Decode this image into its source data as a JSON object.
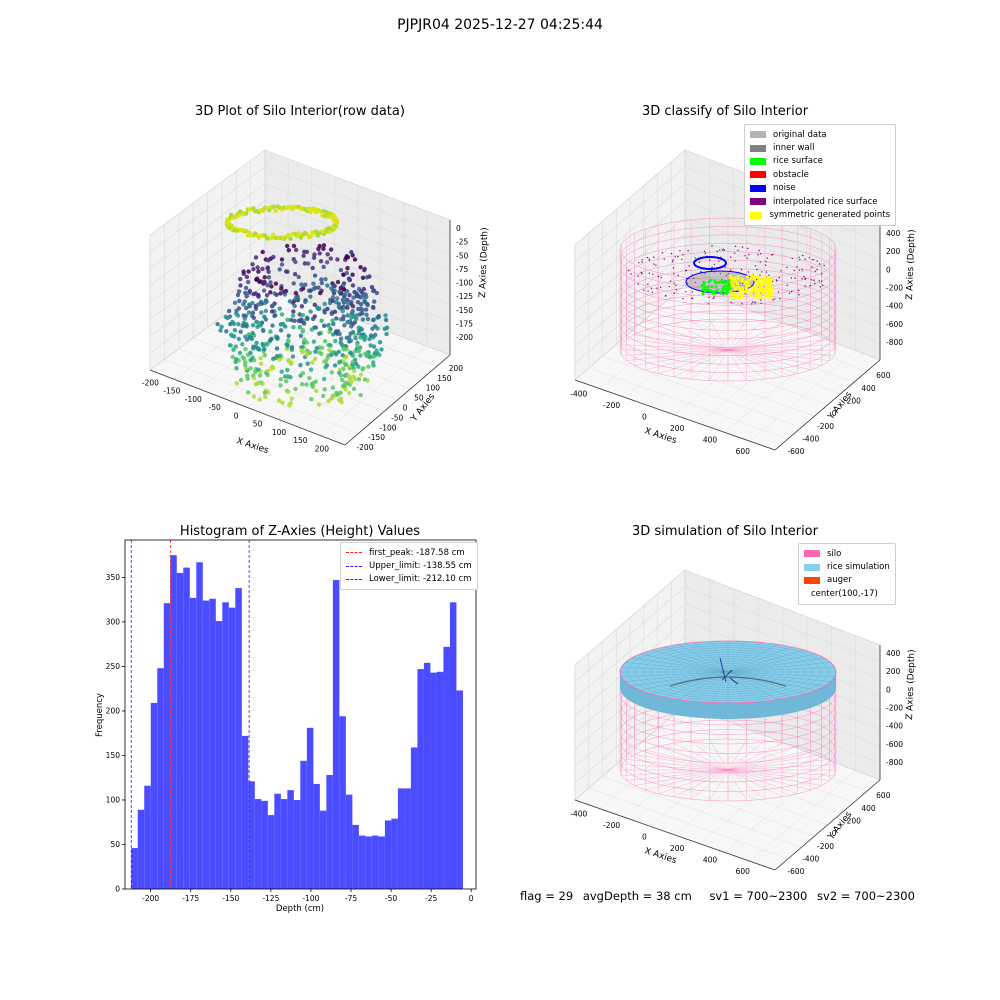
{
  "figure": {
    "title": "PJPJR04 2025-12-27 04:25:44",
    "status": {
      "flag": "flag = 29",
      "avg_depth": "avgDepth = 38 cm",
      "sv1": "sv1 = 700~2300",
      "sv2": "sv2 = 700~2300"
    }
  },
  "chart_data": [
    {
      "type": "scatter",
      "subtype": "3d-scatter",
      "title": "3D Plot of Silo Interior(row data)",
      "xlabel": "X Axies",
      "ylabel": "Y Axies",
      "zlabel": "Z Axies (Depth)",
      "x_ticks": [
        "-200",
        "-150",
        "-100",
        "-50",
        "0",
        "50",
        "100",
        "150",
        "200"
      ],
      "y_ticks": [
        "-200",
        "-150",
        "-100",
        "-50",
        "0",
        "50",
        "100",
        "150",
        "200"
      ],
      "z_ticks": [
        "0",
        "-25",
        "-50",
        "-75",
        "-100",
        "-125",
        "-150",
        "-175",
        "-200"
      ],
      "xlim": [
        -200,
        200
      ],
      "ylim": [
        -200,
        200
      ],
      "zlim": [
        -212,
        0
      ],
      "colormap": "viridis",
      "grid": true
    },
    {
      "type": "scatter",
      "subtype": "3d-classification",
      "title": "3D classify of Silo Interior",
      "xlabel": "X Axies",
      "ylabel": "Y Axies",
      "zlabel": "Z Axies (Depth)",
      "x_ticks": [
        "-400",
        "-200",
        "0",
        "200",
        "400",
        "600"
      ],
      "y_ticks": [
        "-600",
        "-400",
        "-200",
        "0",
        "200",
        "400",
        "600"
      ],
      "z_ticks": [
        "400",
        "200",
        "0",
        "-200",
        "-400",
        "-600",
        "-800"
      ],
      "legend_position": "top-right",
      "legend": [
        {
          "label": "original data",
          "color": "#b3b3b3"
        },
        {
          "label": "inner wall",
          "color": "#808080"
        },
        {
          "label": "rice surface",
          "color": "#00ff00"
        },
        {
          "label": "obstacle",
          "color": "#ff0000"
        },
        {
          "label": "noise",
          "color": "#0000ff"
        },
        {
          "label": "interpolated rice surface",
          "color": "#800080"
        },
        {
          "label": "symmetric generated points",
          "color": "#ffff00"
        }
      ],
      "grid": true
    },
    {
      "type": "bar",
      "subtype": "histogram",
      "title": "Histogram of Z-Axies (Height) Values",
      "xlabel": "Depth (cm)",
      "ylabel": "Frequency",
      "xlim": [
        -216,
        3
      ],
      "ylim": [
        0,
        392
      ],
      "x_ticks": [
        -200,
        -175,
        -150,
        -125,
        -100,
        -75,
        -50,
        -25,
        0
      ],
      "y_ticks": [
        0,
        50,
        100,
        150,
        200,
        250,
        300,
        350
      ],
      "bin_start": -212.1,
      "bin_width": 4.058,
      "values": [
        46,
        89,
        116,
        209,
        248,
        321,
        375,
        355,
        361,
        327,
        367,
        324,
        326,
        301,
        322,
        316,
        338,
        172,
        121,
        101,
        99,
        83,
        107,
        101,
        111,
        100,
        144,
        181,
        118,
        88,
        128,
        347,
        194,
        106,
        72,
        60,
        59,
        60,
        59,
        77,
        79,
        113,
        113,
        159,
        247,
        254,
        243,
        244,
        272,
        322,
        223
      ],
      "bar_color": "#4b4bff",
      "reference_lines": [
        {
          "label": "first_peak: -187.58 cm",
          "x": -187.58,
          "color": "#ff2020"
        },
        {
          "label": "Upper_limit: -138.55 cm",
          "x": -138.55,
          "color": "#2020ff"
        },
        {
          "label": "Lower_limit: -212.10 cm",
          "x": -212.1,
          "color": "#2020ff"
        }
      ],
      "legend_position": "top-right",
      "grid": false
    },
    {
      "type": "scatter",
      "subtype": "3d-surface",
      "title": "3D simulation of Silo Interior",
      "xlabel": "X Axies",
      "ylabel": "Y Axies",
      "zlabel": "Z Axies (Depth)",
      "x_ticks": [
        "-400",
        "-200",
        "0",
        "200",
        "400",
        "600"
      ],
      "y_ticks": [
        "-600",
        "-400",
        "-200",
        "0",
        "200",
        "400",
        "600"
      ],
      "z_ticks": [
        "400",
        "200",
        "0",
        "-200",
        "-400",
        "-600",
        "-800"
      ],
      "legend_position": "top-right",
      "legend": [
        {
          "label": "silo",
          "color": "#ff69b4"
        },
        {
          "label": "rice simulation",
          "color": "#87ceeb"
        },
        {
          "label": "auger",
          "color": "#ff4500"
        },
        {
          "label": "center(100,-17)",
          "color": ""
        }
      ],
      "grid": true
    }
  ]
}
